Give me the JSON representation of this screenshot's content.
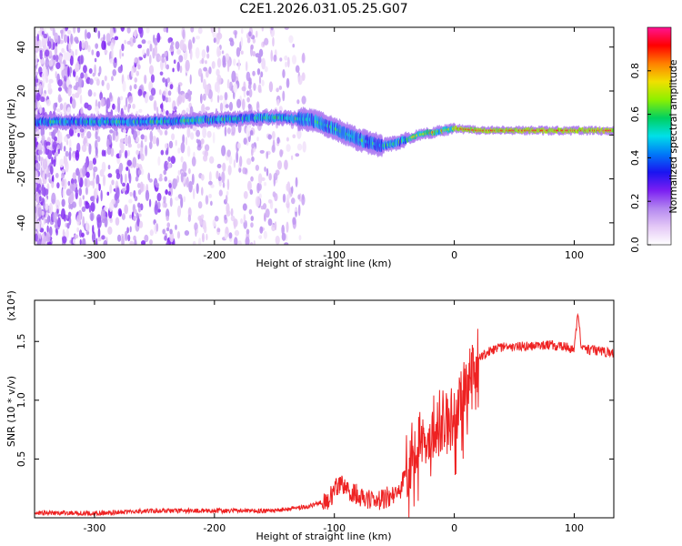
{
  "figure_title": "C2E1.2026.031.05.25.G07",
  "colors": {
    "snr_line": "#ee2222",
    "colormap": [
      "#ffffff",
      "#e4c8f6",
      "#b488f0",
      "#7b1ef2",
      "#1a14f0",
      "#0078f8",
      "#00e0e8",
      "#00d060",
      "#8cf000",
      "#f0e000",
      "#ff8000",
      "#ff0000",
      "#ff1493"
    ]
  },
  "chart_data": [
    {
      "type": "heatmap",
      "title": "C2E1.2026.031.05.25.G07",
      "xlabel": "Height of straight line (km)",
      "ylabel": "Frequency (Hz)",
      "xlim": [
        -350,
        133
      ],
      "ylim": [
        -50,
        49
      ],
      "xticks": [
        -300,
        -200,
        -100,
        0,
        100
      ],
      "yticks": [
        -40,
        -20,
        0,
        20,
        40
      ],
      "colorbar": {
        "label": "Normalized spectral amplitude",
        "range": [
          0,
          1
        ],
        "ticks": [
          0.0,
          0.2,
          0.4,
          0.6,
          0.8
        ]
      },
      "ridge": {
        "description": "dominant frequency track of the signal",
        "x": [
          -345,
          -300,
          -250,
          -200,
          -150,
          -120,
          -100,
          -80,
          -60,
          -50,
          -40,
          -30,
          -20,
          -10,
          0,
          20,
          60,
          100,
          133
        ],
        "y": [
          6,
          6,
          6,
          7,
          8,
          7,
          3,
          -2,
          -5,
          -4,
          -2,
          0,
          1,
          2,
          3,
          2,
          2,
          2,
          2
        ]
      }
    },
    {
      "type": "line",
      "title": "",
      "xlabel": "Height of straight line (km)",
      "ylabel": "SNR (10 * v/v)",
      "y_multiplier": "(x10⁴)",
      "xlim": [
        -350,
        133
      ],
      "ylim": [
        0,
        1.85
      ],
      "xticks": [
        -300,
        -200,
        -100,
        0,
        100
      ],
      "yticks": [
        0.5,
        1.0,
        1.5
      ],
      "series": [
        {
          "name": "SNR",
          "x": [
            -350,
            -300,
            -250,
            -200,
            -160,
            -140,
            -120,
            -105,
            -95,
            -85,
            -75,
            -65,
            -55,
            -45,
            -40,
            -35,
            -30,
            -25,
            -20,
            -15,
            -10,
            -5,
            0,
            5,
            10,
            15,
            20,
            30,
            40,
            60,
            80,
            95,
            100,
            103,
            106,
            110,
            120,
            133
          ],
          "y": [
            0.04,
            0.04,
            0.06,
            0.06,
            0.06,
            0.07,
            0.1,
            0.15,
            0.3,
            0.22,
            0.17,
            0.14,
            0.18,
            0.22,
            0.45,
            0.55,
            0.65,
            0.7,
            0.75,
            0.8,
            0.85,
            0.8,
            0.85,
            1.0,
            1.1,
            1.25,
            1.35,
            1.42,
            1.45,
            1.46,
            1.47,
            1.45,
            1.42,
            1.75,
            1.45,
            1.43,
            1.42,
            1.4
          ]
        }
      ]
    }
  ]
}
